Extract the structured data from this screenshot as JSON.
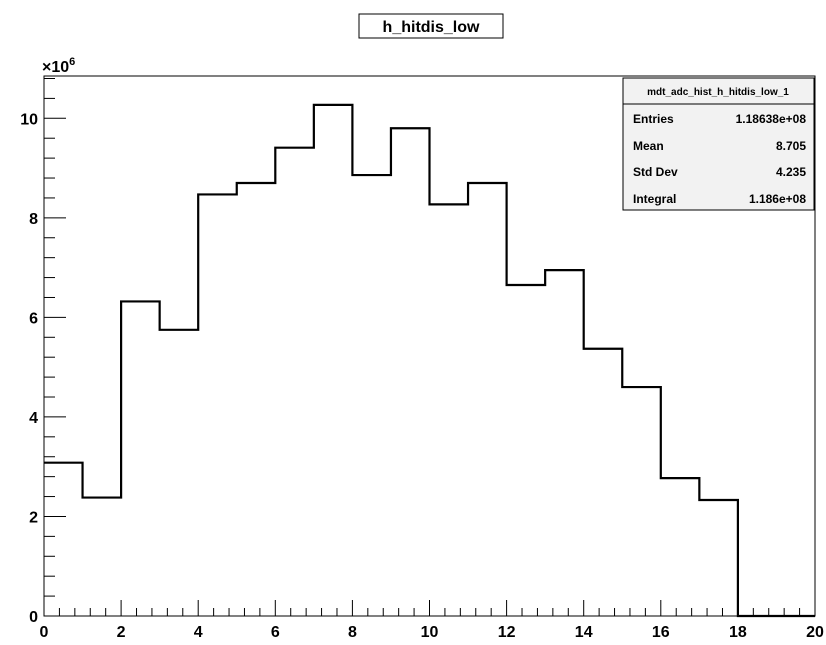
{
  "chart_data": {
    "type": "bar",
    "title": "h_hitdis_low",
    "xlabel": "",
    "ylabel": "",
    "xlim": [
      0,
      20
    ],
    "ylim": [
      0,
      10.85
    ],
    "y_multiplier": "×10",
    "y_exponent": "6",
    "bin_edges": [
      0,
      1,
      2,
      3,
      4,
      5,
      6,
      7,
      8,
      9,
      10,
      11,
      12,
      13,
      14,
      15,
      16,
      17,
      18,
      19,
      20
    ],
    "values": [
      3.08,
      2.38,
      6.32,
      5.75,
      8.47,
      8.7,
      9.41,
      10.27,
      8.86,
      9.8,
      8.27,
      8.7,
      6.65,
      6.95,
      5.37,
      4.6,
      2.77,
      2.33,
      0.0,
      0.0
    ],
    "x_ticks": [
      "0",
      "2",
      "4",
      "6",
      "8",
      "10",
      "12",
      "14",
      "16",
      "18",
      "20"
    ],
    "y_ticks": [
      "0",
      "2",
      "4",
      "6",
      "8",
      "10"
    ],
    "grid": false,
    "legend": "none",
    "line_color": "#000000"
  },
  "stats": {
    "name": "mdt_adc_hist_h_hitdis_low_1",
    "rows": [
      {
        "label": "Entries",
        "value": "1.18638e+08"
      },
      {
        "label": "Mean",
        "value": "8.705"
      },
      {
        "label": "Std Dev",
        "value": "4.235"
      },
      {
        "label": "Integral",
        "value": "1.186e+08"
      }
    ],
    "background": "#f2f2f2"
  }
}
